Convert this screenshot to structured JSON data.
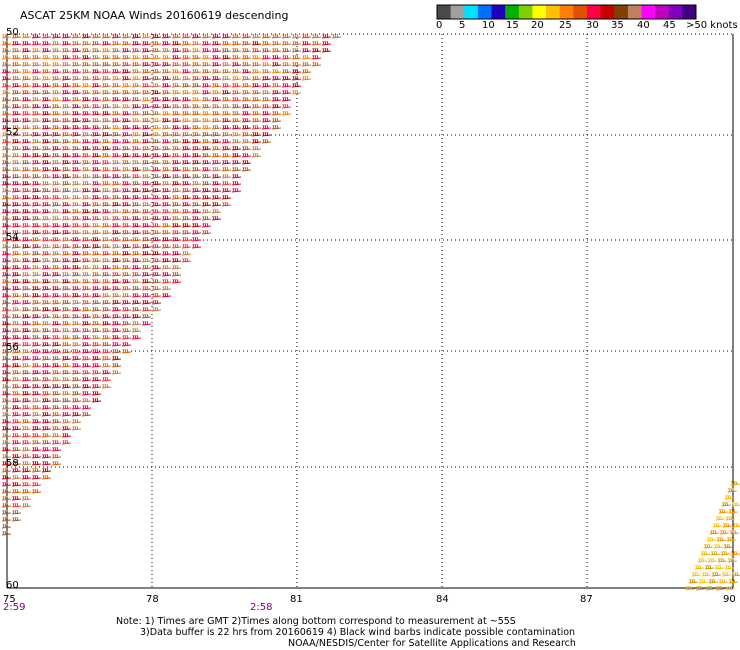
{
  "title": "ASCAT 25KM NOAA Winds 20160619 descending",
  "legend": {
    "tick_labels": [
      "0",
      "5",
      "10",
      "15",
      "20",
      "25",
      "30",
      "35",
      "40",
      "45",
      ">50 knots"
    ],
    "colors": [
      "#4a4a4a",
      "#a0a0a0",
      "#00e0ff",
      "#0070ff",
      "#2000c0",
      "#00b000",
      "#80d000",
      "#ffff00",
      "#ffc000",
      "#ff8000",
      "#e05000",
      "#ff0040",
      "#c80000",
      "#804000",
      "#c08060",
      "#ff00ff",
      "#c000c0",
      "#8000c0",
      "#400080"
    ]
  },
  "map": {
    "lat_labels": [
      "50",
      "52",
      "54",
      "56",
      "58",
      "60"
    ],
    "lon_labels": [
      "75",
      "78",
      "81",
      "84",
      "87",
      "90"
    ],
    "lat_range": [
      -60,
      -50
    ],
    "lon_range": [
      75,
      90
    ]
  },
  "pass_times": [
    "2:59",
    "2:58"
  ],
  "notes": [
    "Note: 1) Times are GMT 2)Times along bottom correspond to measurement at ~55S",
    "3)Data buffer is 22 hrs from 20160619 4) Black wind barbs indicate possible contamination",
    "NOAA/NESDIS/Center for Satellite Applications and Research"
  ]
}
